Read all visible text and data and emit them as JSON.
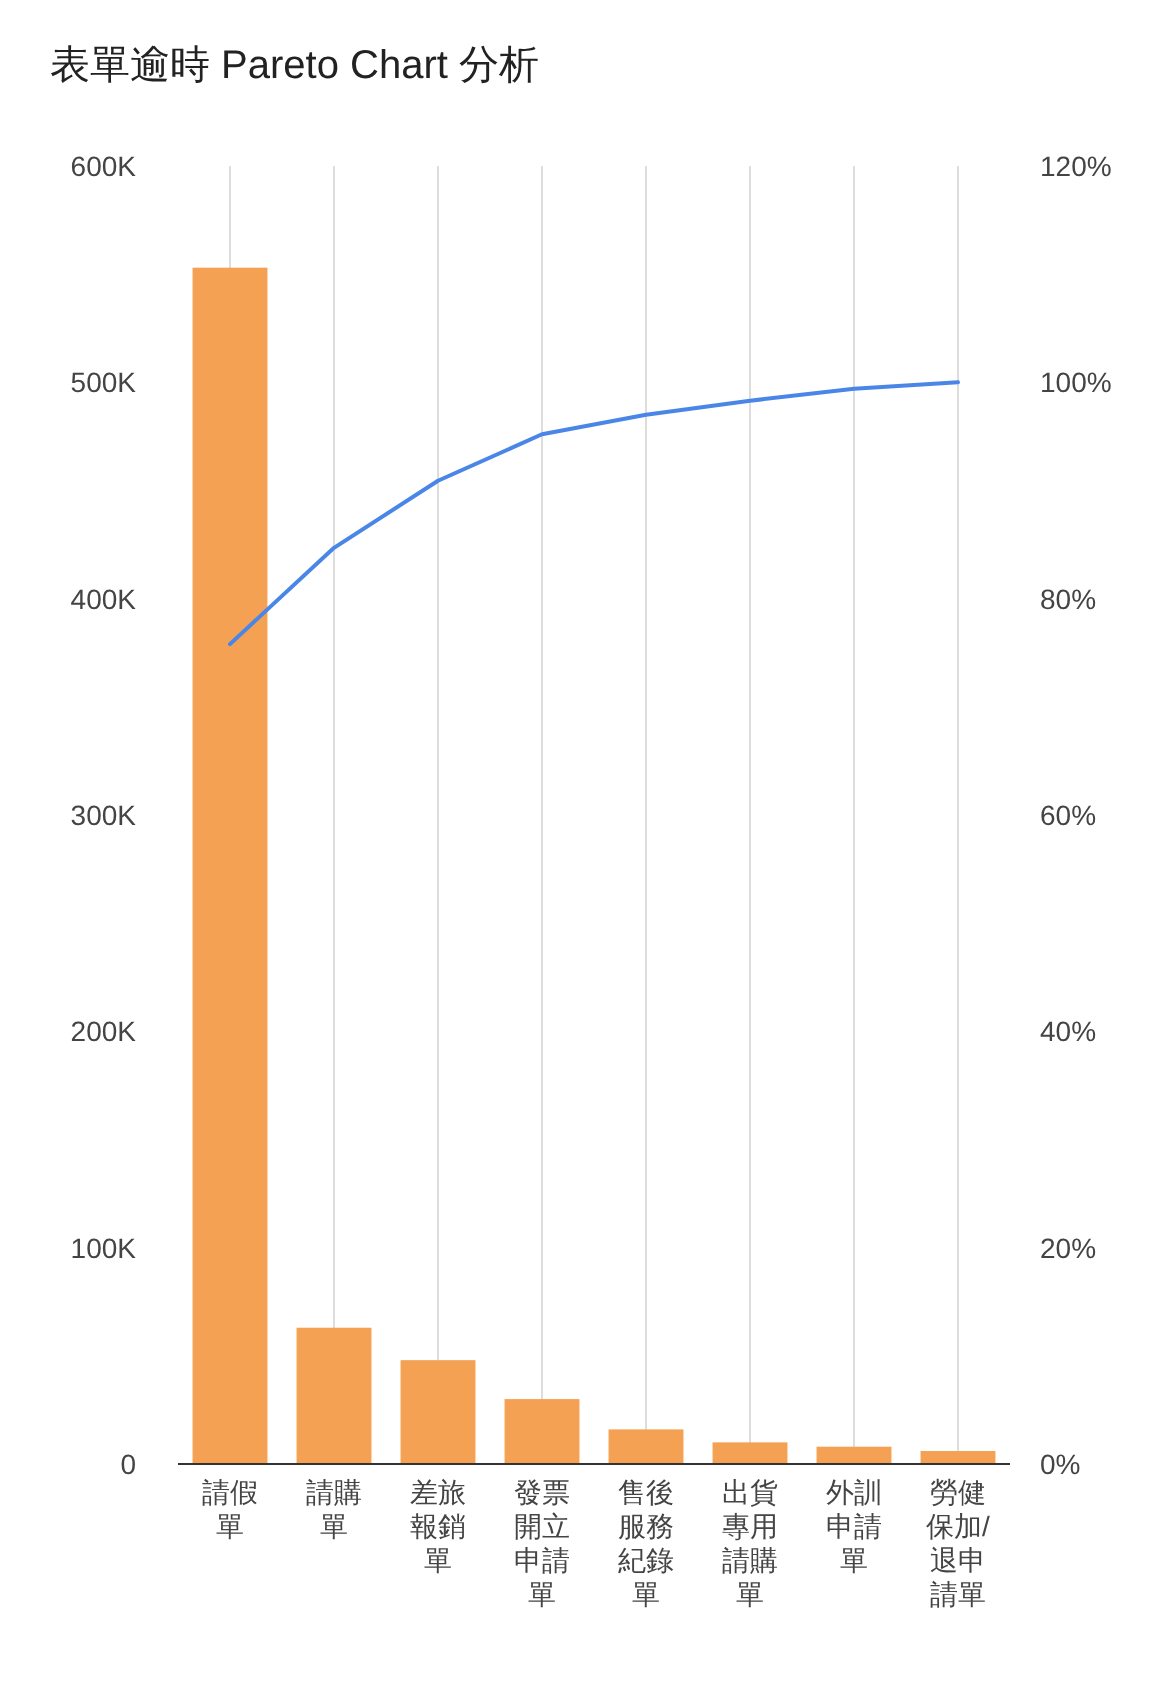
{
  "chart_data": {
    "type": "bar",
    "title": "表單逾時 Pareto Chart 分析",
    "categories": [
      "請假單",
      "請購單",
      "差旅報銷單",
      "發票開立申請單",
      "售後服務紀錄單",
      "出貨專用請購單",
      "外訓申請單",
      "勞健保加/退申請單"
    ],
    "series": [
      {
        "color": "#f4a153",
        "values": [
          553000,
          63000,
          48000,
          30000,
          16000,
          10000,
          8000,
          6000
        ]
      },
      {
        "type": "line",
        "axis": "y2",
        "color": "#4a86e8",
        "values": [
          75.8,
          84.7,
          90.9,
          95.2,
          97.0,
          98.3,
          99.4,
          100
        ]
      }
    ],
    "ylim": [
      0,
      600000
    ],
    "yticks": [
      {
        "value": 0,
        "label": "0"
      },
      {
        "value": 100000,
        "label": "100K"
      },
      {
        "value": 200000,
        "label": "200K"
      },
      {
        "value": 300000,
        "label": "300K"
      },
      {
        "value": 400000,
        "label": "400K"
      },
      {
        "value": 500000,
        "label": "500K"
      },
      {
        "value": 600000,
        "label": "600K"
      }
    ],
    "y2lim": [
      0,
      120
    ],
    "y2ticks": [
      {
        "value": 0,
        "label": "0%"
      },
      {
        "value": 20,
        "label": "20%"
      },
      {
        "value": 40,
        "label": "40%"
      },
      {
        "value": 60,
        "label": "60%"
      },
      {
        "value": 80,
        "label": "80%"
      },
      {
        "value": 100,
        "label": "100%"
      },
      {
        "value": 120,
        "label": "120%"
      }
    ],
    "grid": "x",
    "marker": "none",
    "line_style": "solid"
  }
}
